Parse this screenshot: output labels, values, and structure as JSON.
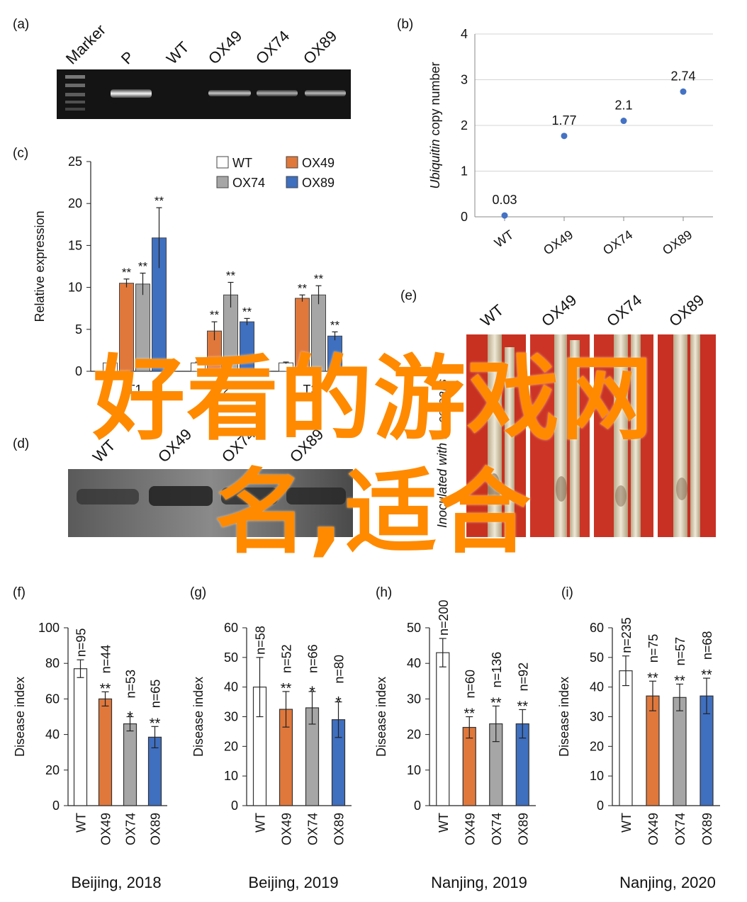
{
  "panels": {
    "a": "(a)",
    "b": "(b)",
    "c": "(c)",
    "d": "(d)",
    "e": "(e)",
    "f": "(f)",
    "g": "(g)",
    "h": "(h)",
    "i": "(i)"
  },
  "gel_a": {
    "lanes": [
      "Marker",
      "P",
      "WT",
      "OX49",
      "OX74",
      "OX89"
    ]
  },
  "blot_d": {
    "lanes": [
      "WT",
      "OX49",
      "OX74",
      "OX89"
    ]
  },
  "photo_e": {
    "labels": [
      "WT",
      "OX49",
      "OX74",
      "OX89"
    ],
    "ylabel": "Inoculated with R. cerealis"
  },
  "watermark": {
    "line1": "好看的游戏网",
    "line2": "名,适合"
  },
  "colors": {
    "WT": "#ffffff",
    "OX49": "#e0783c",
    "OX74": "#a6a6a6",
    "OX89": "#3f6fbf",
    "point": "#4472c4",
    "watermark": "#ff8a00"
  },
  "chart_data": [
    {
      "id": "b",
      "type": "scatter",
      "categories": [
        "WT",
        "OX49",
        "OX74",
        "OX89"
      ],
      "values": [
        0.03,
        1.77,
        2.1,
        2.74
      ],
      "data_labels": [
        "0.03",
        "1.77",
        "2.1",
        "2.74"
      ],
      "ylabel_italic": "Ubiquitin",
      "ylabel_rest": " copy number",
      "ylim": [
        0,
        4
      ],
      "yticks": [
        "0",
        "1",
        "2",
        "3",
        "4"
      ],
      "grid": true
    },
    {
      "id": "c",
      "type": "bar",
      "groups": [
        "T1",
        "T2",
        "T3"
      ],
      "series": [
        {
          "name": "WT",
          "values": [
            1.0,
            1.0,
            1.0
          ],
          "errors": [
            0.1,
            0.1,
            0.1
          ],
          "sig": [
            "",
            "",
            ""
          ]
        },
        {
          "name": "OX49",
          "values": [
            10.5,
            4.8,
            8.7
          ],
          "errors": [
            0.5,
            1.1,
            0.4
          ],
          "sig": [
            "**",
            "**",
            "**"
          ]
        },
        {
          "name": "OX74",
          "values": [
            10.4,
            9.1,
            9.1
          ],
          "errors": [
            1.3,
            1.5,
            1.1
          ],
          "sig": [
            "**",
            "**",
            "**"
          ]
        },
        {
          "name": "OX89",
          "values": [
            15.9,
            5.9,
            4.2
          ],
          "errors": [
            3.6,
            0.4,
            0.5
          ],
          "sig": [
            "**",
            "**",
            "**"
          ]
        }
      ],
      "ylabel": "Relative expression",
      "ylim": [
        0,
        25
      ],
      "yticks": [
        "0",
        "5",
        "10",
        "15",
        "20",
        "25"
      ],
      "legend": "top-right"
    },
    {
      "id": "f",
      "type": "bar",
      "categories": [
        "WT",
        "OX49",
        "OX74",
        "OX89"
      ],
      "values": [
        77,
        60,
        46,
        38.5
      ],
      "errors": [
        5,
        4,
        4,
        6
      ],
      "n_labels": [
        "n=95",
        "n=44",
        "n=53",
        "n=65"
      ],
      "sig": [
        "",
        "**",
        "*",
        "**"
      ],
      "ylabel": "Disease index",
      "ylim": [
        0,
        100
      ],
      "yticks": [
        "0",
        "20",
        "40",
        "60",
        "80",
        "100"
      ],
      "caption": "Beijing, 2018"
    },
    {
      "id": "g",
      "type": "bar",
      "categories": [
        "WT",
        "OX49",
        "OX74",
        "OX89"
      ],
      "values": [
        40,
        32.5,
        33,
        29
      ],
      "errors": [
        10,
        6,
        5.5,
        6
      ],
      "n_labels": [
        "n=58",
        "n=52",
        "n=66",
        "n=80"
      ],
      "sig": [
        "",
        "**",
        "*",
        "*"
      ],
      "ylabel": "Disease index",
      "ylim": [
        0,
        60
      ],
      "yticks": [
        "0",
        "10",
        "20",
        "30",
        "40",
        "50",
        "60"
      ],
      "caption": "Beijing, 2019"
    },
    {
      "id": "h",
      "type": "bar",
      "categories": [
        "WT",
        "OX49",
        "OX74",
        "OX89"
      ],
      "values": [
        43,
        22,
        23,
        23
      ],
      "errors": [
        4,
        3,
        5,
        4
      ],
      "n_labels": [
        "n=200",
        "n=60",
        "n=136",
        "n=92"
      ],
      "sig": [
        "",
        "**",
        "**",
        "**"
      ],
      "ylabel": "Disease index",
      "ylim": [
        0,
        50
      ],
      "yticks": [
        "0",
        "10",
        "20",
        "30",
        "40",
        "50"
      ],
      "caption": "Nanjing, 2019"
    },
    {
      "id": "i",
      "type": "bar",
      "categories": [
        "WT",
        "OX49",
        "OX74",
        "OX89"
      ],
      "values": [
        45.5,
        37,
        36.5,
        37
      ],
      "errors": [
        5,
        5,
        4.5,
        6
      ],
      "n_labels": [
        "n=235",
        "n=75",
        "n=57",
        "n=68"
      ],
      "sig": [
        "",
        "**",
        "**",
        "**"
      ],
      "ylabel": "Disease index",
      "ylim": [
        0,
        60
      ],
      "yticks": [
        "0",
        "10",
        "20",
        "30",
        "40",
        "50",
        "60"
      ],
      "caption": "Nanjing, 2020"
    }
  ]
}
